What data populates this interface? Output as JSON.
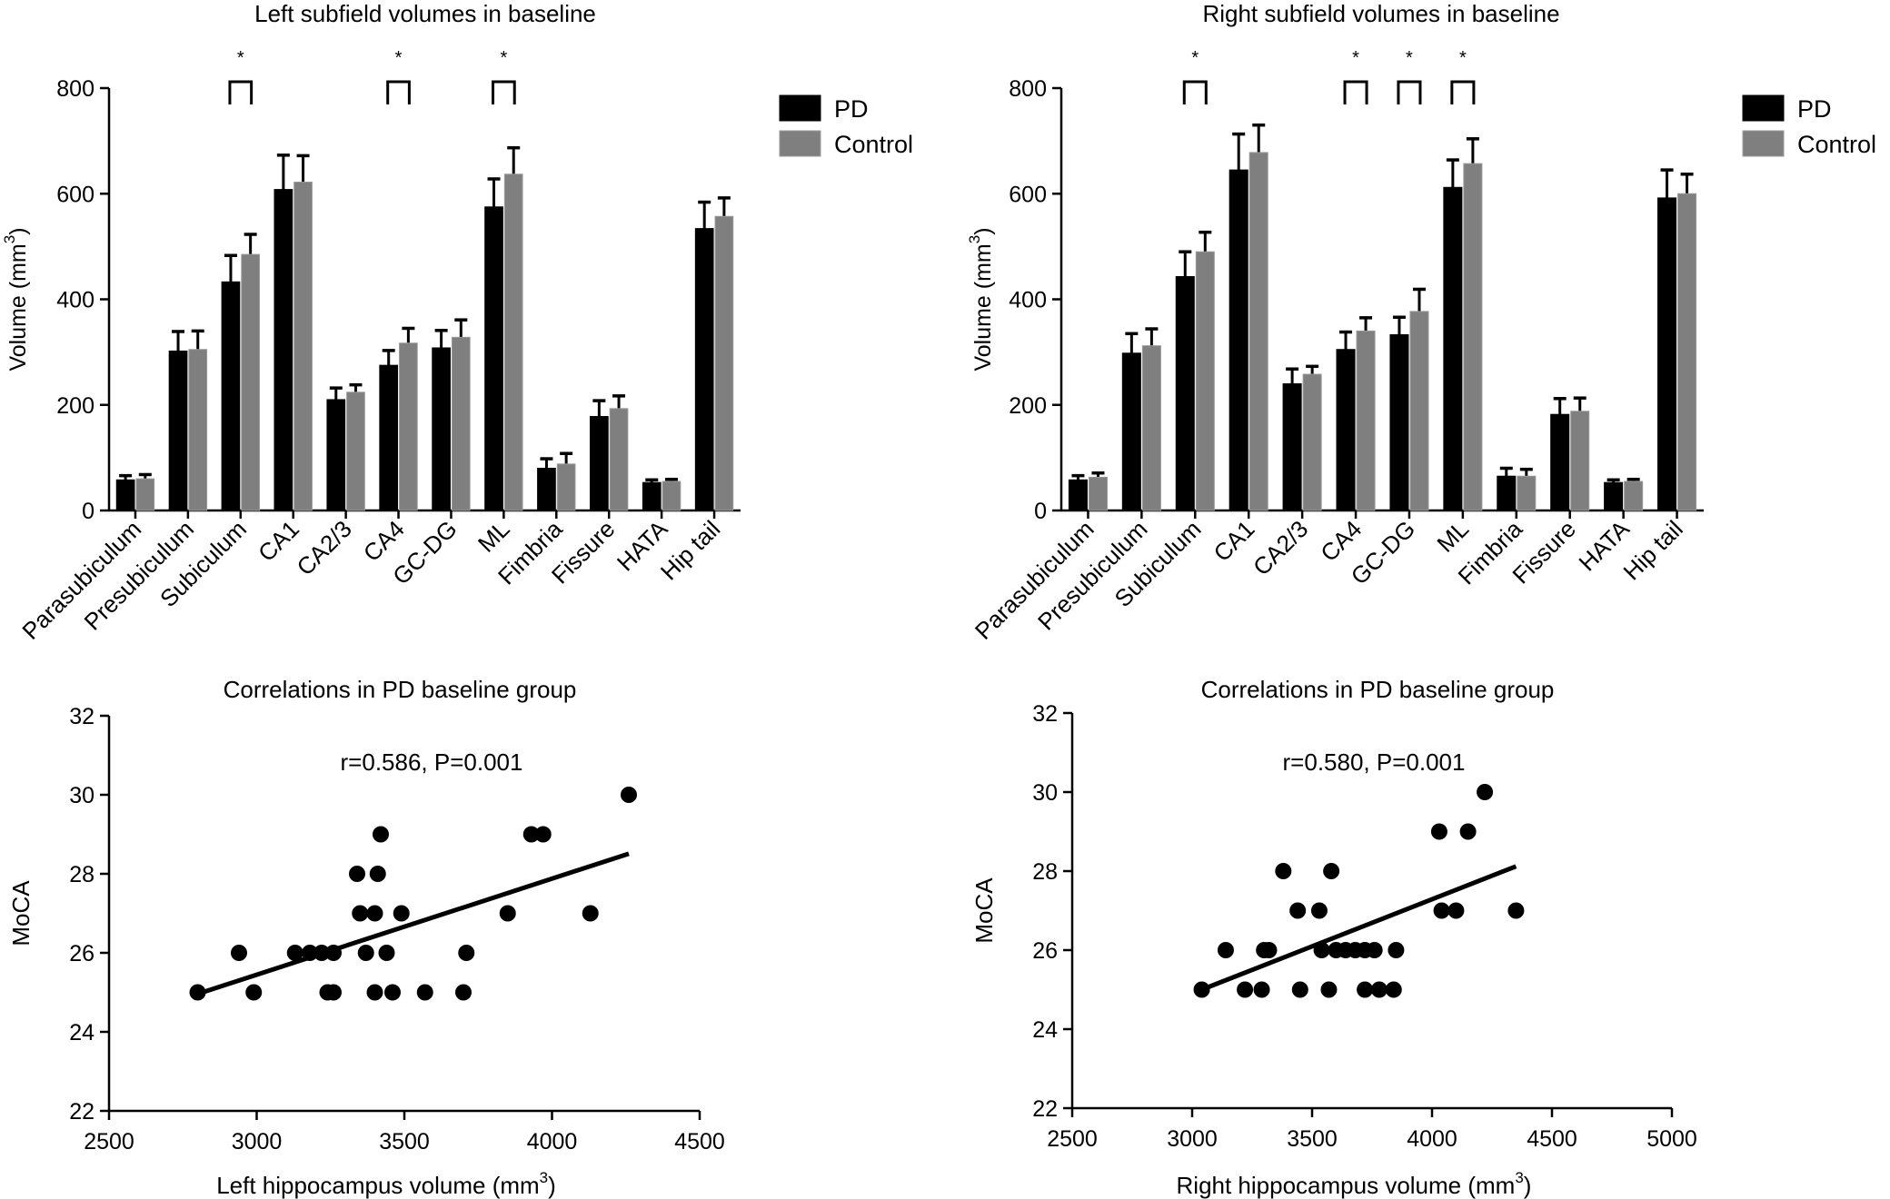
{
  "chart_data": [
    {
      "type": "bar",
      "title": "Left subfield volumes in baseline",
      "ylabel": "Volume (mm",
      "ylabel_sup": "3",
      "ylabel_close": ")",
      "ylim": [
        0,
        800
      ],
      "yticks": [
        0,
        200,
        400,
        600,
        800
      ],
      "categories": [
        "Parasubiculum",
        "Presubiculum",
        "Subiculum",
        "CA1",
        "CA2/3",
        "CA4",
        "GC-DG",
        "ML",
        "Fimbria",
        "Fissure",
        "HATA",
        "Hip tail"
      ],
      "legend_position": "top-right",
      "series": [
        {
          "name": "PD",
          "color": "#000000",
          "values": [
            58,
            302,
            433,
            608,
            210,
            275,
            308,
            575,
            80,
            178,
            53,
            534
          ],
          "errors": [
            8,
            37,
            50,
            65,
            22,
            28,
            33,
            53,
            18,
            30,
            5,
            50
          ]
        },
        {
          "name": "Control",
          "color": "#7f7f7f",
          "values": [
            60,
            305,
            485,
            622,
            224,
            317,
            328,
            637,
            88,
            193,
            55,
            557
          ],
          "errors": [
            8,
            35,
            38,
            50,
            14,
            28,
            33,
            50,
            20,
            24,
            4,
            35
          ]
        }
      ],
      "significance": [
        {
          "category_index": 2,
          "label": "*"
        },
        {
          "category_index": 5,
          "label": "*"
        },
        {
          "category_index": 7,
          "label": "*"
        }
      ]
    },
    {
      "type": "bar",
      "title": "Right subfield volumes in baseline",
      "ylabel": "Volume (mm",
      "ylabel_sup": "3",
      "ylabel_close": ")",
      "ylim": [
        0,
        800
      ],
      "yticks": [
        0,
        200,
        400,
        600,
        800
      ],
      "categories": [
        "Parasubiculum",
        "Presubiculum",
        "Subiculum",
        "CA1",
        "CA2/3",
        "CA4",
        "GC-DG",
        "ML",
        "Fimbria",
        "Fissure",
        "HATA",
        "Hip tail"
      ],
      "legend_position": "top-right",
      "series": [
        {
          "name": "PD",
          "color": "#000000",
          "values": [
            58,
            298,
            443,
            645,
            240,
            305,
            333,
            612,
            65,
            182,
            53,
            592
          ],
          "errors": [
            8,
            37,
            47,
            68,
            28,
            33,
            33,
            52,
            15,
            30,
            5,
            53
          ]
        },
        {
          "name": "Control",
          "color": "#7f7f7f",
          "values": [
            63,
            312,
            490,
            678,
            258,
            340,
            377,
            657,
            65,
            188,
            55,
            600
          ],
          "errors": [
            8,
            32,
            37,
            52,
            15,
            25,
            42,
            47,
            13,
            25,
            4,
            37
          ]
        }
      ],
      "significance": [
        {
          "category_index": 2,
          "label": "*"
        },
        {
          "category_index": 5,
          "label": "*"
        },
        {
          "category_index": 6,
          "label": "*"
        },
        {
          "category_index": 7,
          "label": "*"
        }
      ]
    },
    {
      "type": "scatter",
      "title": "Correlations in PD baseline group",
      "xlabel": "Left hippocampus volume (mm",
      "xlabel_sup": "3",
      "xlabel_close": ")",
      "ylabel": "MoCA",
      "xlim": [
        2500,
        4500
      ],
      "ylim": [
        22,
        32
      ],
      "xticks": [
        2500,
        3000,
        3500,
        4000,
        4500
      ],
      "yticks": [
        22,
        24,
        26,
        28,
        30,
        32
      ],
      "annotation": "r=0.586, P=0.001",
      "points": [
        [
          2800,
          25
        ],
        [
          2940,
          26
        ],
        [
          2990,
          25
        ],
        [
          3130,
          26
        ],
        [
          3180,
          26
        ],
        [
          3220,
          26
        ],
        [
          3240,
          25
        ],
        [
          3260,
          25
        ],
        [
          3260,
          26
        ],
        [
          3340,
          28
        ],
        [
          3350,
          27
        ],
        [
          3370,
          26
        ],
        [
          3400,
          25
        ],
        [
          3400,
          27
        ],
        [
          3410,
          28
        ],
        [
          3420,
          29
        ],
        [
          3440,
          26
        ],
        [
          3460,
          25
        ],
        [
          3490,
          27
        ],
        [
          3570,
          25
        ],
        [
          3700,
          25
        ],
        [
          3710,
          26
        ],
        [
          3850,
          27
        ],
        [
          3930,
          29
        ],
        [
          3970,
          29
        ],
        [
          4130,
          27
        ],
        [
          4260,
          30
        ]
      ],
      "trendline": {
        "x": [
          2800,
          4260
        ],
        "y": [
          24.96,
          28.51
        ]
      }
    },
    {
      "type": "scatter",
      "title": "Correlations in PD baseline group",
      "xlabel": "Right hippocampus volume (mm",
      "xlabel_sup": "3",
      "xlabel_close": ")",
      "ylabel": "MoCA",
      "xlim": [
        2500,
        5000
      ],
      "ylim": [
        22,
        32
      ],
      "xticks": [
        2500,
        3000,
        3500,
        4000,
        4500,
        5000
      ],
      "yticks": [
        22,
        24,
        26,
        28,
        30,
        32
      ],
      "annotation": "r=0.580, P=0.001",
      "points": [
        [
          3040,
          25
        ],
        [
          3140,
          26
        ],
        [
          3220,
          25
        ],
        [
          3290,
          25
        ],
        [
          3300,
          26
        ],
        [
          3320,
          26
        ],
        [
          3380,
          28
        ],
        [
          3440,
          27
        ],
        [
          3450,
          25
        ],
        [
          3530,
          27
        ],
        [
          3540,
          26
        ],
        [
          3570,
          25
        ],
        [
          3580,
          28
        ],
        [
          3600,
          26
        ],
        [
          3640,
          26
        ],
        [
          3680,
          26
        ],
        [
          3720,
          26
        ],
        [
          3720,
          25
        ],
        [
          3760,
          26
        ],
        [
          3780,
          25
        ],
        [
          3840,
          25
        ],
        [
          3850,
          26
        ],
        [
          4030,
          29
        ],
        [
          4040,
          27
        ],
        [
          4100,
          27
        ],
        [
          4150,
          29
        ],
        [
          4220,
          30
        ],
        [
          4350,
          27
        ]
      ],
      "trendline": {
        "x": [
          3040,
          4350
        ],
        "y": [
          25.0,
          28.12
        ]
      }
    }
  ]
}
